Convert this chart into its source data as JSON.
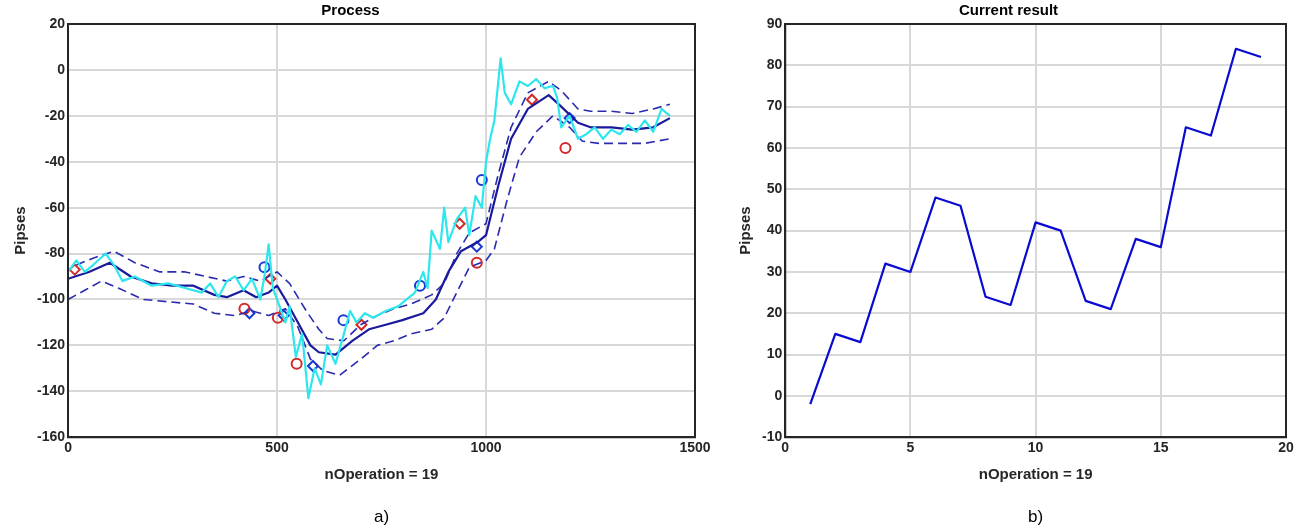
{
  "chart_data": [
    {
      "type": "line",
      "title": "Process",
      "xlabel": "nOperation = 19",
      "ylabel": "Pipses",
      "annotations": [
        "a)"
      ],
      "xlim": [
        0,
        1500
      ],
      "xticks": [
        0,
        500,
        1000,
        1500
      ],
      "ylim": [
        -160,
        20
      ],
      "yticks": [
        -160,
        -140,
        -120,
        -100,
        -80,
        -60,
        -40,
        -20,
        0,
        20
      ],
      "grid": true,
      "legend": false,
      "series": [
        {
          "type": "line",
          "color": "#2ee6ee",
          "marker": "none",
          "line_style": "solid",
          "x": [
            0,
            20,
            40,
            60,
            90,
            110,
            130,
            160,
            200,
            240,
            280,
            320,
            340,
            360,
            380,
            400,
            420,
            440,
            460,
            470,
            480,
            490,
            500,
            510,
            520,
            530,
            545,
            560,
            575,
            590,
            605,
            620,
            640,
            660,
            675,
            690,
            710,
            730,
            760,
            790,
            810,
            830,
            850,
            860,
            870,
            890,
            900,
            910,
            930,
            950,
            960,
            975,
            990,
            1000,
            1010,
            1020,
            1035,
            1045,
            1060,
            1080,
            1100,
            1120,
            1140,
            1160,
            1170,
            1180,
            1200,
            1220,
            1240,
            1260,
            1280,
            1300,
            1320,
            1340,
            1360,
            1380,
            1400,
            1420,
            1440
          ],
          "values": [
            -88,
            -83,
            -88,
            -85,
            -80,
            -85,
            -92,
            -90,
            -94,
            -93,
            -95,
            -97,
            -93,
            -99,
            -92,
            -90,
            -96,
            -91,
            -100,
            -90,
            -76,
            -95,
            -100,
            -105,
            -110,
            -103,
            -125,
            -115,
            -143,
            -130,
            -137,
            -120,
            -128,
            -115,
            -105,
            -110,
            -106,
            -108,
            -105,
            -103,
            -100,
            -97,
            -88,
            -95,
            -70,
            -78,
            -60,
            -75,
            -65,
            -60,
            -72,
            -55,
            -60,
            -40,
            -30,
            -22,
            5,
            -10,
            -15,
            -5,
            -7,
            -4,
            -8,
            -7,
            -12,
            -25,
            -20,
            -30,
            -28,
            -25,
            -30,
            -26,
            -28,
            -24,
            -27,
            -22,
            -27,
            -17,
            -20
          ]
        },
        {
          "type": "line",
          "color": "#1a1a9c",
          "marker": "none",
          "line_style": "solid",
          "x": [
            0,
            50,
            100,
            150,
            200,
            250,
            300,
            350,
            380,
            420,
            450,
            480,
            500,
            520,
            550,
            580,
            600,
            640,
            680,
            720,
            760,
            800,
            850,
            880,
            910,
            940,
            980,
            1000,
            1030,
            1060,
            1100,
            1150,
            1180,
            1220,
            1250,
            1300,
            1350,
            1400,
            1440
          ],
          "values": [
            -91,
            -88,
            -84,
            -90,
            -93,
            -94,
            -94,
            -98,
            -99,
            -96,
            -99,
            -97,
            -94,
            -100,
            -110,
            -120,
            -123,
            -124,
            -118,
            -113,
            -111,
            -109,
            -106,
            -100,
            -88,
            -79,
            -75,
            -72,
            -50,
            -30,
            -17,
            -11,
            -16,
            -23,
            -25,
            -25,
            -26,
            -25,
            -21
          ]
        },
        {
          "type": "line",
          "color": "#2a2ab0",
          "marker": "none",
          "line_style": "dashed",
          "x": [
            20,
            60,
            110,
            160,
            220,
            280,
            330,
            380,
            420,
            460,
            500,
            530,
            570,
            600,
            620,
            660,
            700,
            740,
            780,
            820,
            870,
            900,
            930,
            960,
            1000,
            1030,
            1060,
            1100,
            1150,
            1180,
            1220,
            1250,
            1300,
            1350,
            1400,
            1440
          ],
          "values": [
            -85,
            -82,
            -79,
            -84,
            -88,
            -88,
            -90,
            -92,
            -90,
            -92,
            -88,
            -93,
            -105,
            -113,
            -117,
            -118,
            -111,
            -107,
            -104,
            -102,
            -98,
            -93,
            -80,
            -71,
            -67,
            -45,
            -25,
            -10,
            -5,
            -9,
            -17,
            -18,
            -18,
            -19,
            -17,
            -15
          ]
        },
        {
          "type": "line",
          "color": "#2a2ab0",
          "marker": "none",
          "line_style": "dashed",
          "x": [
            0,
            40,
            80,
            120,
            180,
            240,
            300,
            350,
            400,
            440,
            480,
            520,
            550,
            580,
            610,
            650,
            700,
            740,
            780,
            820,
            870,
            900,
            930,
            960,
            1000,
            1020,
            1050,
            1080,
            1120,
            1160,
            1200,
            1230,
            1270,
            1320,
            1380,
            1440
          ],
          "values": [
            -100,
            -96,
            -92,
            -95,
            -100,
            -101,
            -102,
            -106,
            -107,
            -105,
            -107,
            -104,
            -112,
            -126,
            -131,
            -133,
            -126,
            -120,
            -118,
            -115,
            -113,
            -108,
            -97,
            -86,
            -83,
            -78,
            -57,
            -38,
            -27,
            -20,
            -25,
            -31,
            -32,
            -32,
            -32,
            -30
          ]
        },
        {
          "type": "scatter",
          "color": "#d42a2a",
          "marker": "circle",
          "x": [
            422,
            502,
            547,
            978,
            1190
          ],
          "values": [
            -104,
            -108,
            -128,
            -84,
            -34
          ]
        },
        {
          "type": "scatter",
          "color": "#1a3ad6",
          "marker": "circle",
          "x": [
            470,
            659,
            842,
            990
          ],
          "values": [
            -86,
            -109,
            -94,
            -48
          ]
        },
        {
          "type": "scatter",
          "color": "#d42a2a",
          "marker": "diamond",
          "x": [
            16,
            484,
            702,
            937,
            1110
          ],
          "values": [
            -87,
            -91,
            -111,
            -67,
            -13
          ]
        },
        {
          "type": "scatter",
          "color": "#1a3ad6",
          "marker": "diamond",
          "x": [
            434,
            516,
            586,
            978,
            1200
          ],
          "values": [
            -106,
            -107,
            -129,
            -77,
            -21
          ]
        }
      ]
    },
    {
      "type": "line",
      "title": "Current result",
      "xlabel": "nOperation = 19",
      "ylabel": "Pipses",
      "annotations": [
        "b)"
      ],
      "xlim": [
        0,
        20
      ],
      "xticks": [
        0,
        5,
        10,
        15,
        20
      ],
      "ylim": [
        -10,
        90
      ],
      "yticks": [
        -10,
        0,
        10,
        20,
        30,
        40,
        50,
        60,
        70,
        80,
        90
      ],
      "grid": true,
      "legend": false,
      "series": [
        {
          "type": "line",
          "color": "#0a0ad0",
          "marker": "none",
          "line_style": "solid",
          "x": [
            1,
            2,
            3,
            4,
            5,
            6,
            7,
            8,
            9,
            10,
            11,
            12,
            13,
            14,
            15,
            16,
            17,
            18,
            19
          ],
          "values": [
            -2,
            15,
            13,
            32,
            30,
            48,
            46,
            24,
            22,
            42,
            40,
            23,
            21,
            38,
            36,
            65,
            63,
            84,
            82
          ]
        }
      ]
    }
  ]
}
